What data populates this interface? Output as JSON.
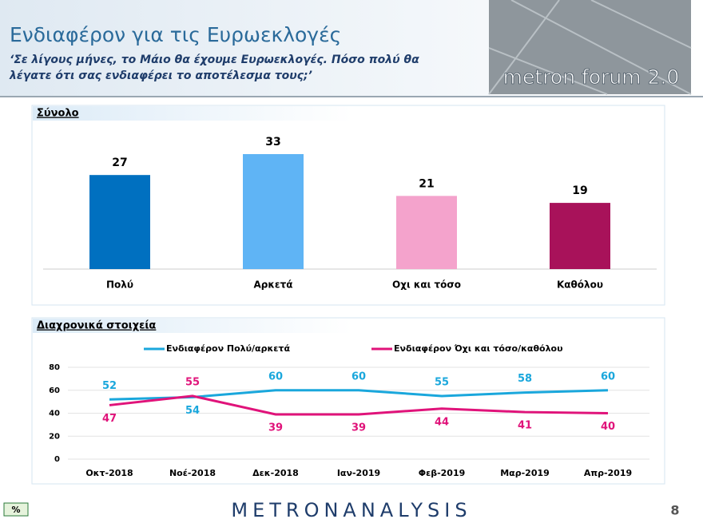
{
  "header": {
    "title": "Ενδιαφέρον για τις Ευρωεκλογές",
    "subtitle_lines": [
      "‘Σε λίγους μήνες, το Μάιο θα έχουμε Ευρωεκλογές. Πόσο πολύ θα",
      "λέγατε ότι σας ενδιαφέρει το αποτέλεσμα τους;’"
    ]
  },
  "logo": "metron forum 2.0",
  "chart_data": [
    {
      "type": "bar",
      "title": "Σύνολο",
      "categories": [
        "Πολύ",
        "Αρκετά",
        "Οχι και τόσο",
        "Καθόλου"
      ],
      "values": [
        27,
        33,
        21,
        19
      ],
      "colors": [
        "#0070c0",
        "#5fb4f5",
        "#f4a3cc",
        "#a8125a"
      ]
    },
    {
      "type": "line",
      "title": "Διαχρονικά στοιχεία",
      "categories": [
        "Οκτ-2018",
        "Νοέ-2018",
        "Δεκ-2018",
        "Ιαν-2019",
        "Φεβ-2019",
        "Μαρ-2019",
        "Απρ-2019"
      ],
      "series": [
        {
          "name": "Ενδιαφέρον Πολύ/αρκετά",
          "color": "#1aa7dc",
          "values": [
            52,
            54,
            60,
            60,
            55,
            58,
            60
          ]
        },
        {
          "name": "Ενδιαφέρον Όχι και τόσο/καθόλου",
          "color": "#e0137a",
          "values": [
            47,
            55,
            39,
            39,
            44,
            41,
            40
          ]
        }
      ],
      "ylim": [
        0,
        80
      ],
      "yticks": [
        0,
        20,
        40,
        60,
        80
      ],
      "grid": true,
      "legend": "top"
    }
  ],
  "footer": {
    "badge": "%",
    "brand": "METRONANALYSIS",
    "page": "8"
  }
}
